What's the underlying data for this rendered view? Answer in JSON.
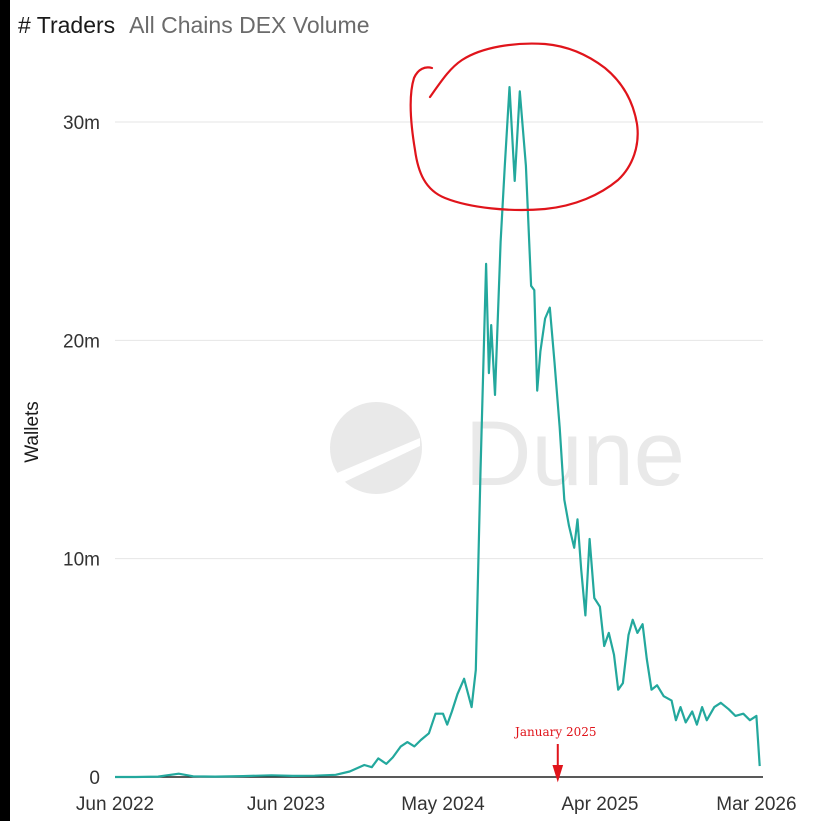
{
  "header": {
    "title": "# Traders",
    "subtitle": "All Chains DEX Volume"
  },
  "watermark": "Dune",
  "colors": {
    "line": "#23a89d",
    "grid": "#e6e6e6",
    "axis": "#222222",
    "annotation": "#e0141b",
    "watermark": "#e9e9e9"
  },
  "chart_data": {
    "type": "line",
    "title": "# Traders",
    "subtitle": "All Chains DEX Volume",
    "xlabel": "",
    "ylabel": "Wallets",
    "ylim": [
      0,
      32000000
    ],
    "xlim": [
      "2022-06-01",
      "2026-03-15"
    ],
    "grid": true,
    "x_ticks": [
      {
        "date": "2022-06-01",
        "label": "Jun 2022"
      },
      {
        "date": "2023-06-01",
        "label": "Jun 2023"
      },
      {
        "date": "2024-05-01",
        "label": "May 2024"
      },
      {
        "date": "2025-04-01",
        "label": "Apr 2025"
      },
      {
        "date": "2026-03-01",
        "label": "Mar 2026"
      }
    ],
    "y_ticks": [
      {
        "value": 0,
        "label": "0"
      },
      {
        "value": 10000000,
        "label": "10m"
      },
      {
        "value": 20000000,
        "label": "20m"
      },
      {
        "value": 30000000,
        "label": "30m"
      }
    ],
    "annotation": {
      "text": "January 2025",
      "date": "2025-01-01"
    },
    "series": [
      {
        "points": [
          [
            "2022-06-01",
            0
          ],
          [
            "2022-07-15",
            0
          ],
          [
            "2022-09-01",
            20000
          ],
          [
            "2022-10-15",
            150000
          ],
          [
            "2022-11-15",
            30000
          ],
          [
            "2023-01-01",
            20000
          ],
          [
            "2023-03-01",
            40000
          ],
          [
            "2023-05-01",
            80000
          ],
          [
            "2023-06-15",
            50000
          ],
          [
            "2023-08-01",
            60000
          ],
          [
            "2023-09-15",
            100000
          ],
          [
            "2023-10-15",
            250000
          ],
          [
            "2023-11-15",
            550000
          ],
          [
            "2023-12-01",
            450000
          ],
          [
            "2023-12-15",
            850000
          ],
          [
            "2024-01-01",
            600000
          ],
          [
            "2024-01-15",
            900000
          ],
          [
            "2024-02-01",
            1400000
          ],
          [
            "2024-02-15",
            1600000
          ],
          [
            "2024-03-01",
            1400000
          ],
          [
            "2024-03-15",
            1700000
          ],
          [
            "2024-04-01",
            2000000
          ],
          [
            "2024-04-15",
            2900000
          ],
          [
            "2024-05-01",
            2900000
          ],
          [
            "2024-05-10",
            2400000
          ],
          [
            "2024-05-20",
            3000000
          ],
          [
            "2024-06-01",
            3800000
          ],
          [
            "2024-06-15",
            4500000
          ],
          [
            "2024-07-01",
            3200000
          ],
          [
            "2024-07-10",
            4900000
          ],
          [
            "2024-07-20",
            14000000
          ],
          [
            "2024-08-01",
            23500000
          ],
          [
            "2024-08-07",
            18500000
          ],
          [
            "2024-08-12",
            20700000
          ],
          [
            "2024-08-20",
            17500000
          ],
          [
            "2024-09-01",
            24500000
          ],
          [
            "2024-09-10",
            28000000
          ],
          [
            "2024-09-20",
            31600000
          ],
          [
            "2024-10-01",
            27300000
          ],
          [
            "2024-10-12",
            31400000
          ],
          [
            "2024-10-25",
            28000000
          ],
          [
            "2024-11-05",
            22500000
          ],
          [
            "2024-11-12",
            22300000
          ],
          [
            "2024-11-18",
            17700000
          ],
          [
            "2024-11-25",
            19500000
          ],
          [
            "2024-12-05",
            21000000
          ],
          [
            "2024-12-15",
            21500000
          ],
          [
            "2024-12-25",
            19000000
          ],
          [
            "2025-01-05",
            16000000
          ],
          [
            "2025-01-15",
            12700000
          ],
          [
            "2025-01-25",
            11500000
          ],
          [
            "2025-02-05",
            10500000
          ],
          [
            "2025-02-12",
            11800000
          ],
          [
            "2025-02-20",
            9500000
          ],
          [
            "2025-03-01",
            7400000
          ],
          [
            "2025-03-10",
            10900000
          ],
          [
            "2025-03-20",
            8200000
          ],
          [
            "2025-04-01",
            7800000
          ],
          [
            "2025-04-10",
            6000000
          ],
          [
            "2025-04-20",
            6600000
          ],
          [
            "2025-05-01",
            5600000
          ],
          [
            "2025-05-10",
            4000000
          ],
          [
            "2025-05-20",
            4300000
          ],
          [
            "2025-06-01",
            6500000
          ],
          [
            "2025-06-10",
            7200000
          ],
          [
            "2025-06-20",
            6600000
          ],
          [
            "2025-07-01",
            7000000
          ],
          [
            "2025-07-10",
            5400000
          ],
          [
            "2025-07-20",
            4000000
          ],
          [
            "2025-08-01",
            4200000
          ],
          [
            "2025-08-15",
            3700000
          ],
          [
            "2025-09-01",
            3500000
          ],
          [
            "2025-09-10",
            2600000
          ],
          [
            "2025-09-20",
            3200000
          ],
          [
            "2025-10-01",
            2500000
          ],
          [
            "2025-10-15",
            3000000
          ],
          [
            "2025-10-25",
            2400000
          ],
          [
            "2025-11-05",
            3200000
          ],
          [
            "2025-11-15",
            2600000
          ],
          [
            "2025-12-01",
            3200000
          ],
          [
            "2025-12-15",
            3400000
          ],
          [
            "2026-01-01",
            3100000
          ],
          [
            "2026-01-15",
            2800000
          ],
          [
            "2026-02-01",
            2900000
          ],
          [
            "2026-02-15",
            2600000
          ],
          [
            "2026-03-01",
            2800000
          ],
          [
            "2026-03-08",
            500000
          ]
        ]
      }
    ]
  }
}
